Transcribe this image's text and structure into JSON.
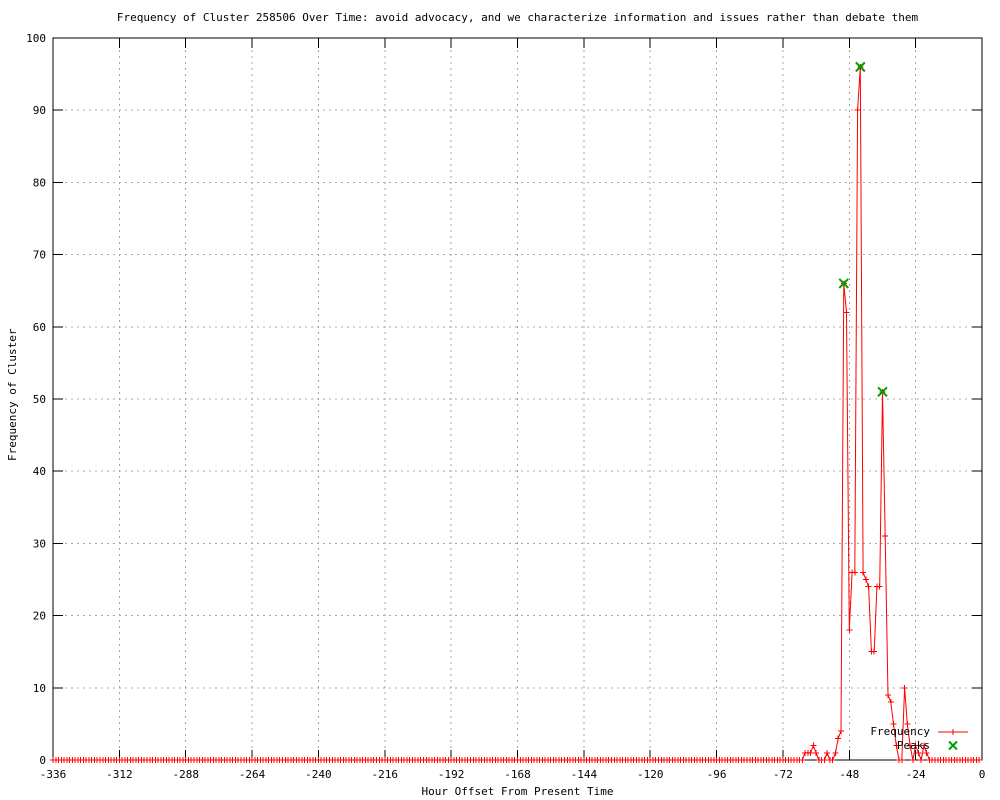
{
  "title": "Frequency of Cluster 258506 Over Time: avoid advocacy, and we characterize information and issues rather than debate them",
  "axes": {
    "xlabel": "Hour Offset From Present Time",
    "ylabel": "Frequency of Cluster",
    "xlim": [
      -336,
      0
    ],
    "ylim": [
      0,
      100
    ],
    "xticks": [
      -336,
      -312,
      -288,
      -264,
      -240,
      -216,
      -192,
      -168,
      -144,
      -120,
      -96,
      -72,
      -48,
      -24,
      0
    ],
    "yticks": [
      0,
      10,
      20,
      30,
      40,
      50,
      60,
      70,
      80,
      90,
      100
    ],
    "grid": true
  },
  "legend": {
    "position": "bottom-right",
    "entries": [
      {
        "label": "Frequency",
        "color": "#ff0000",
        "marker": "plus"
      },
      {
        "label": "Peaks",
        "color": "#00a000",
        "marker": "cross"
      }
    ]
  },
  "colors": {
    "background": "#ffffff",
    "border": "#000000",
    "grid": "#a8a8a8",
    "text": "#000000",
    "frequency": "#ff0000",
    "peaks": "#00a000"
  },
  "chart_data": {
    "type": "line",
    "title": "Frequency of Cluster 258506 Over Time: avoid advocacy, and we characterize information and issues rather than debate them",
    "xlabel": "Hour Offset From Present Time",
    "ylabel": "Frequency of Cluster",
    "xlim": [
      -336,
      0
    ],
    "ylim": [
      0,
      100
    ],
    "grid": "dotted",
    "legend_position": "bottom-right",
    "series": [
      {
        "name": "Frequency",
        "color": "#ff0000",
        "marker": "plus",
        "style": "linespoints",
        "baseline_zero_range": [
          -336,
          -66
        ],
        "points": [
          [
            -65,
            0
          ],
          [
            -64,
            1
          ],
          [
            -63,
            1
          ],
          [
            -62,
            1
          ],
          [
            -61,
            2
          ],
          [
            -60,
            1
          ],
          [
            -59,
            0
          ],
          [
            -58,
            0
          ],
          [
            -57,
            0
          ],
          [
            -56,
            1
          ],
          [
            -55,
            0
          ],
          [
            -54,
            0
          ],
          [
            -53,
            1
          ],
          [
            -52,
            3
          ],
          [
            -51,
            4
          ],
          [
            -50,
            66
          ],
          [
            -49,
            62
          ],
          [
            -48,
            18
          ],
          [
            -47,
            26
          ],
          [
            -46,
            26
          ],
          [
            -45,
            90
          ],
          [
            -44,
            96
          ],
          [
            -43,
            26
          ],
          [
            -42,
            25
          ],
          [
            -41,
            24
          ],
          [
            -40,
            15
          ],
          [
            -39,
            15
          ],
          [
            -38,
            24
          ],
          [
            -37,
            24
          ],
          [
            -36,
            51
          ],
          [
            -35,
            31
          ],
          [
            -34,
            9
          ],
          [
            -33,
            8
          ],
          [
            -32,
            5
          ],
          [
            -31,
            2
          ],
          [
            -30,
            0
          ],
          [
            -29,
            0
          ],
          [
            -28,
            10
          ],
          [
            -27,
            5
          ],
          [
            -26,
            2
          ],
          [
            -25,
            0
          ],
          [
            -24,
            2
          ],
          [
            -23,
            1
          ],
          [
            -22,
            0
          ],
          [
            -21,
            2
          ],
          [
            -20,
            1
          ],
          [
            -19,
            0
          ],
          [
            -18,
            0
          ],
          [
            -17,
            0
          ],
          [
            -16,
            0
          ],
          [
            -15,
            0
          ],
          [
            -14,
            0
          ],
          [
            -13,
            0
          ],
          [
            -12,
            0
          ],
          [
            -11,
            0
          ],
          [
            -10,
            0
          ],
          [
            -9,
            0
          ],
          [
            -8,
            0
          ],
          [
            -7,
            0
          ],
          [
            -6,
            0
          ],
          [
            -5,
            0
          ],
          [
            -4,
            0
          ],
          [
            -3,
            0
          ],
          [
            -2,
            0
          ],
          [
            -1,
            0
          ]
        ]
      },
      {
        "name": "Peaks",
        "color": "#00a000",
        "marker": "cross",
        "style": "points",
        "points": [
          [
            -50,
            66
          ],
          [
            -44,
            96
          ],
          [
            -36,
            51
          ]
        ]
      }
    ]
  }
}
